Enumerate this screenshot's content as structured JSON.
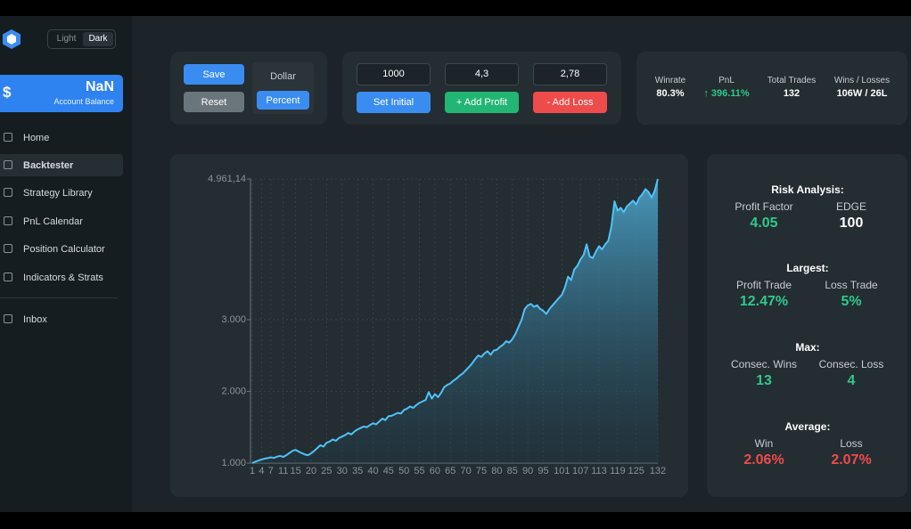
{
  "app": {
    "theme_toggle": [
      "Light",
      "Dark"
    ],
    "balance": {
      "symbol": "$",
      "value": "NaN",
      "label": "Account Balance"
    },
    "nav": [
      "Home",
      "Backtester",
      "Strategy Library",
      "PnL Calendar",
      "Position Calculator",
      "Indicators & Strats",
      "Inbox"
    ]
  },
  "controls": {
    "save": "Save",
    "reset": "Reset",
    "dollar": "Dollar",
    "percent": "Percent",
    "inputs": [
      "1000",
      "4,3",
      "2,78"
    ],
    "buttons": [
      "Set Initial",
      "+ Add Profit",
      "- Add Loss"
    ]
  },
  "stats": [
    {
      "label": "Winrate",
      "value": "80.3%"
    },
    {
      "label": "PnL",
      "value": "↑ 396.11%"
    },
    {
      "label": "Total Trades",
      "value": "132"
    },
    {
      "label": "Wins / Losses",
      "value": "106W / 26L"
    }
  ],
  "risk": [
    {
      "title": "Risk Analysis:",
      "items": [
        {
          "label": "Profit Factor",
          "value": "4.05"
        },
        {
          "label": "EDGE",
          "value": "100"
        }
      ]
    },
    {
      "title": "Largest:",
      "items": [
        {
          "label": "Profit Trade",
          "value": "12.47%"
        },
        {
          "label": "Loss Trade",
          "value": "5%"
        }
      ]
    },
    {
      "title": "Max:",
      "items": [
        {
          "label": "Consec. Wins",
          "value": "13"
        },
        {
          "label": "Consec. Loss",
          "value": "4"
        }
      ]
    },
    {
      "title": "Average:",
      "items": [
        {
          "label": "Win",
          "value": "2.06%"
        },
        {
          "label": "Loss",
          "value": "2.07%"
        }
      ]
    }
  ],
  "chart_data": {
    "type": "area",
    "color": "#4fc3f7",
    "grid": true,
    "x": [
      1,
      2,
      3,
      4,
      5,
      6,
      7,
      8,
      9,
      10,
      11,
      12,
      13,
      14,
      15,
      16,
      17,
      18,
      19,
      20,
      21,
      22,
      23,
      24,
      25,
      26,
      27,
      28,
      29,
      30,
      31,
      32,
      33,
      34,
      35,
      36,
      37,
      38,
      39,
      40,
      41,
      42,
      43,
      44,
      45,
      46,
      47,
      48,
      49,
      50,
      51,
      52,
      53,
      54,
      55,
      56,
      57,
      58,
      59,
      60,
      61,
      62,
      63,
      64,
      65,
      66,
      67,
      68,
      69,
      70,
      71,
      72,
      73,
      74,
      75,
      76,
      77,
      78,
      79,
      80,
      81,
      82,
      83,
      84,
      85,
      86,
      87,
      88,
      89,
      90,
      91,
      92,
      93,
      94,
      95,
      96,
      97,
      98,
      99,
      100,
      101,
      102,
      103,
      104,
      105,
      106,
      107,
      108,
      109,
      110,
      111,
      112,
      113,
      114,
      115,
      116,
      117,
      118,
      119,
      120,
      121,
      122,
      123,
      124,
      125,
      126,
      127,
      128,
      129,
      130,
      131,
      132
    ],
    "values": [
      1000,
      1020,
      1035,
      1050,
      1062,
      1070,
      1080,
      1072,
      1090,
      1100,
      1086,
      1110,
      1140,
      1170,
      1185,
      1160,
      1140,
      1120,
      1110,
      1136,
      1170,
      1210,
      1250,
      1230,
      1284,
      1300,
      1330,
      1310,
      1350,
      1370,
      1390,
      1420,
      1400,
      1440,
      1469,
      1490,
      1510,
      1500,
      1530,
      1556,
      1540,
      1580,
      1620,
      1600,
      1654,
      1660,
      1680,
      1700,
      1690,
      1741,
      1760,
      1790,
      1770,
      1810,
      1840,
      1860,
      1880,
      1990,
      1900,
      1963,
      1920,
      1980,
      2060,
      2090,
      2111,
      2150,
      2180,
      2220,
      2250,
      2296,
      2340,
      2390,
      2450,
      2500,
      2481,
      2530,
      2560,
      2510,
      2570,
      2580,
      2620,
      2650,
      2700,
      2680,
      2728,
      2800,
      2900,
      3000,
      3150,
      3198,
      3220,
      3180,
      3200,
      3150,
      3123,
      3080,
      3150,
      3200,
      3250,
      3300,
      3346,
      3450,
      3600,
      3550,
      3700,
      3750,
      3840,
      3900,
      4050,
      3880,
      3860,
      3950,
      4025,
      3980,
      4050,
      4100,
      4300,
      4650,
      4519,
      4560,
      4500,
      4580,
      4620,
      4660,
      4605,
      4700,
      4750,
      4820,
      4780,
      4700,
      4800,
      4961.14
    ],
    "xlim": [
      1,
      132
    ],
    "xticks": [
      1,
      4,
      7,
      11,
      15,
      20,
      25,
      30,
      35,
      40,
      45,
      50,
      55,
      60,
      65,
      70,
      75,
      80,
      85,
      90,
      95,
      101,
      107,
      113,
      119,
      125,
      132
    ],
    "ylim": [
      1000,
      4961.14
    ],
    "yticks": [
      {
        "value": 1000,
        "label": "1.000"
      },
      {
        "value": 2000,
        "label": "2.000"
      },
      {
        "value": 3000,
        "label": "3.000"
      },
      {
        "value": 4961.14,
        "label": "4.961,14"
      }
    ]
  }
}
